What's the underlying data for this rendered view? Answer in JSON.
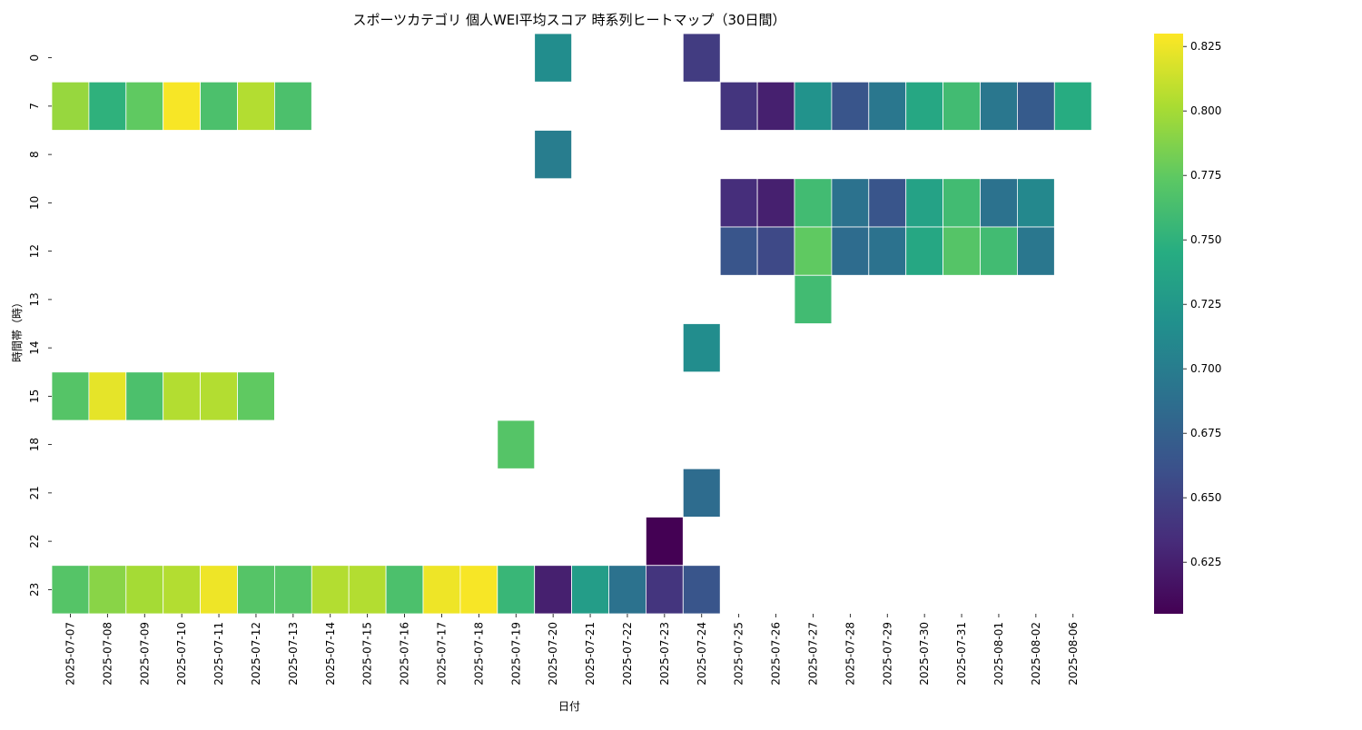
{
  "chart_data": {
    "type": "heatmap",
    "title": "スポーツカテゴリ 個人WEI平均スコア 時系列ヒートマップ（30日間）",
    "xlabel": "日付",
    "ylabel": "時間帯（時）",
    "colormap": "viridis",
    "vmin": 0.605,
    "vmax": 0.83,
    "colorbar_ticks": [
      "0.625",
      "0.650",
      "0.675",
      "0.700",
      "0.725",
      "0.750",
      "0.775",
      "0.800",
      "0.825"
    ],
    "x": [
      "2025-07-07",
      "2025-07-08",
      "2025-07-09",
      "2025-07-10",
      "2025-07-11",
      "2025-07-12",
      "2025-07-13",
      "2025-07-14",
      "2025-07-15",
      "2025-07-16",
      "2025-07-17",
      "2025-07-18",
      "2025-07-19",
      "2025-07-20",
      "2025-07-21",
      "2025-07-22",
      "2025-07-23",
      "2025-07-24",
      "2025-07-25",
      "2025-07-26",
      "2025-07-27",
      "2025-07-28",
      "2025-07-29",
      "2025-07-30",
      "2025-07-31",
      "2025-08-01",
      "2025-08-02",
      "2025-08-06"
    ],
    "y": [
      "0",
      "7",
      "8",
      "10",
      "12",
      "13",
      "14",
      "15",
      "18",
      "21",
      "22",
      "23"
    ],
    "values": [
      [
        null,
        null,
        null,
        null,
        null,
        null,
        null,
        null,
        null,
        null,
        null,
        null,
        null,
        0.715,
        null,
        null,
        null,
        0.645,
        null,
        null,
        null,
        null,
        null,
        null,
        null,
        null,
        null,
        null
      ],
      [
        0.795,
        0.75,
        0.775,
        0.828,
        0.765,
        0.805,
        0.765,
        null,
        null,
        null,
        null,
        null,
        null,
        null,
        null,
        null,
        null,
        null,
        0.64,
        0.625,
        0.72,
        0.665,
        0.695,
        0.74,
        0.76,
        0.695,
        0.67,
        0.745
      ],
      [
        null,
        null,
        null,
        null,
        null,
        null,
        null,
        null,
        null,
        null,
        null,
        null,
        null,
        0.7,
        null,
        null,
        null,
        null,
        null,
        null,
        null,
        null,
        null,
        null,
        null,
        null,
        null,
        null
      ],
      [
        null,
        null,
        null,
        null,
        null,
        null,
        null,
        null,
        null,
        null,
        null,
        null,
        null,
        null,
        null,
        null,
        null,
        null,
        0.635,
        0.625,
        0.76,
        0.69,
        0.665,
        0.735,
        0.76,
        0.69,
        0.71,
        null
      ],
      [
        null,
        null,
        null,
        null,
        null,
        null,
        null,
        null,
        null,
        null,
        null,
        null,
        null,
        null,
        null,
        null,
        null,
        null,
        0.665,
        0.655,
        0.775,
        0.685,
        0.69,
        0.74,
        0.77,
        0.76,
        0.695,
        null
      ],
      [
        null,
        null,
        null,
        null,
        null,
        null,
        null,
        null,
        null,
        null,
        null,
        null,
        null,
        null,
        null,
        null,
        null,
        null,
        null,
        null,
        0.76,
        null,
        null,
        null,
        null,
        null,
        null,
        null
      ],
      [
        null,
        null,
        null,
        null,
        null,
        null,
        null,
        null,
        null,
        null,
        null,
        null,
        null,
        null,
        null,
        null,
        null,
        0.715,
        null,
        null,
        null,
        null,
        null,
        null,
        null,
        null,
        null,
        null
      ],
      [
        0.77,
        0.822,
        0.765,
        0.805,
        0.805,
        0.775,
        null,
        null,
        null,
        null,
        null,
        null,
        null,
        null,
        null,
        null,
        null,
        null,
        null,
        null,
        null,
        null,
        null,
        null,
        null,
        null,
        null,
        null
      ],
      [
        null,
        null,
        null,
        null,
        null,
        null,
        null,
        null,
        null,
        null,
        null,
        null,
        0.77,
        null,
        null,
        null,
        null,
        null,
        null,
        null,
        null,
        null,
        null,
        null,
        null,
        null,
        null,
        null
      ],
      [
        null,
        null,
        null,
        null,
        null,
        null,
        null,
        null,
        null,
        null,
        null,
        null,
        null,
        null,
        null,
        null,
        null,
        0.685,
        null,
        null,
        null,
        null,
        null,
        null,
        null,
        null,
        null,
        null
      ],
      [
        null,
        null,
        null,
        null,
        null,
        null,
        null,
        null,
        null,
        null,
        null,
        null,
        null,
        null,
        null,
        null,
        0.605,
        null,
        null,
        null,
        null,
        null,
        null,
        null,
        null,
        null,
        null,
        null
      ],
      [
        0.77,
        0.79,
        0.8,
        0.805,
        0.825,
        0.77,
        0.77,
        0.805,
        0.805,
        0.765,
        0.825,
        0.828,
        0.755,
        0.625,
        0.73,
        0.69,
        0.64,
        0.665,
        null,
        null,
        null,
        null,
        null,
        null,
        null,
        null,
        null,
        null
      ]
    ]
  }
}
